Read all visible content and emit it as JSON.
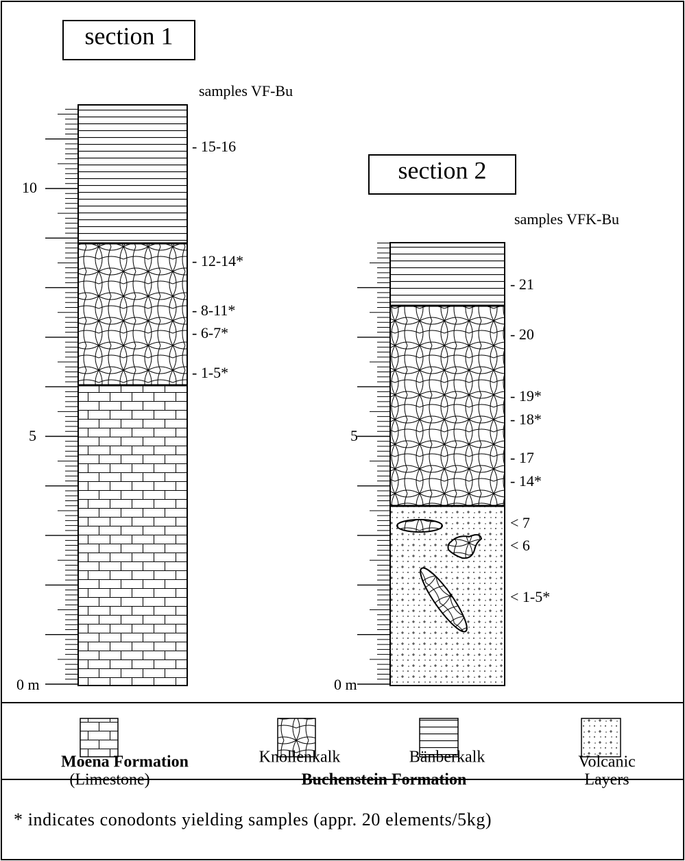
{
  "section_1": {
    "title": "section 1",
    "samples_heading": "samples VF-Bu",
    "samples": [
      "- 15-16",
      "- 12-14*",
      "- 8-11*",
      "- 6-7*",
      "- 1-5*"
    ],
    "scale": [
      "10",
      "5",
      "0 m"
    ]
  },
  "section_2": {
    "title": "section 2",
    "samples_heading": "samples VFK-Bu",
    "samples": [
      "- 21",
      "- 20",
      "- 19*",
      "- 18*",
      "- 17",
      "- 14*",
      "< 7",
      "< 6",
      "< 1-5*"
    ],
    "scale": [
      "5",
      "0 m"
    ]
  },
  "legend": {
    "moena": [
      "Moena Formation",
      "(Limestone)"
    ],
    "knollenkalk": "Knollenkalk",
    "banberkalk": "Bänberkalk",
    "buchenstein": "Buchenstein Formation",
    "volcanic": [
      "Volcanic",
      "Layers"
    ]
  },
  "footnote": "* indicates conodonts yielding samples (appr. 20 elements/5kg)"
}
